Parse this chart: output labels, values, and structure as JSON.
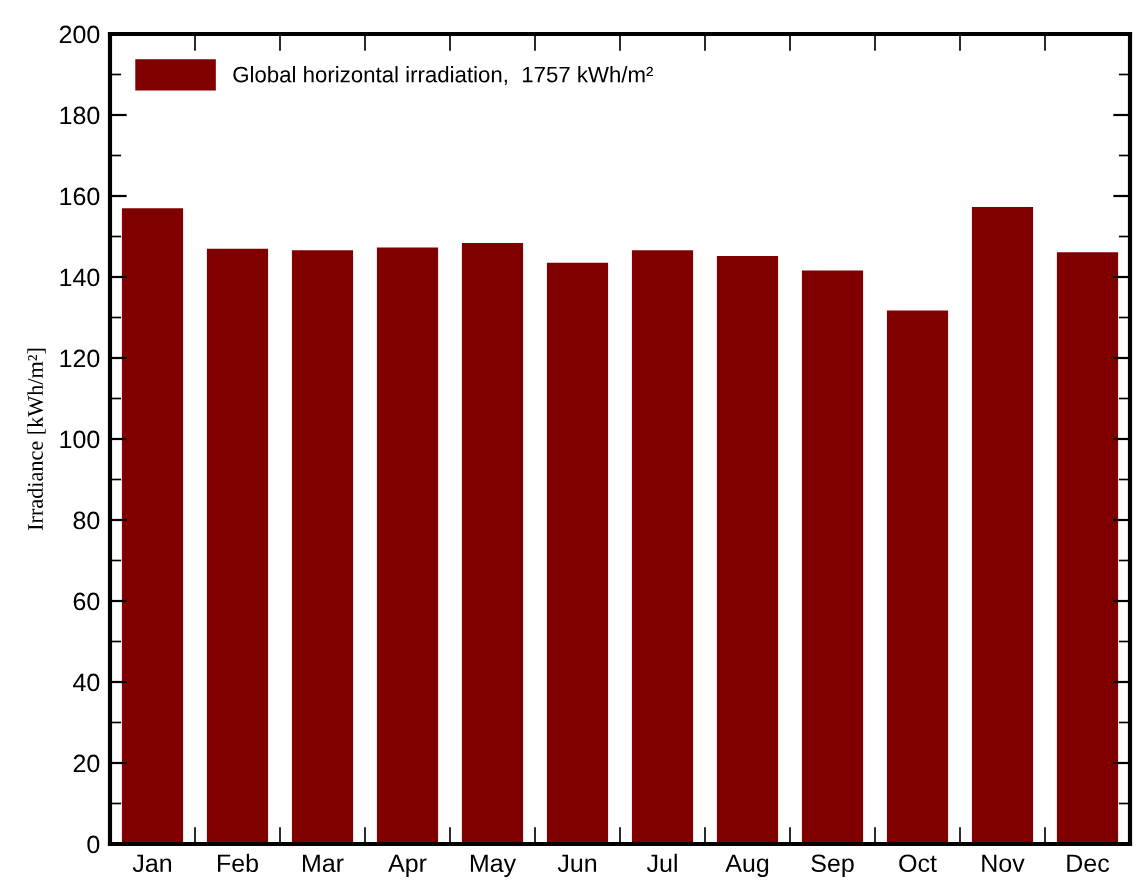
{
  "chart_data": {
    "type": "bar",
    "categories": [
      "Jan",
      "Feb",
      "Mar",
      "Apr",
      "May",
      "Jun",
      "Jul",
      "Aug",
      "Sep",
      "Oct",
      "Nov",
      "Dec"
    ],
    "series": [
      {
        "name": "Global horizontal irradiation,  1757 kWh/m²",
        "color": "#800000",
        "values": [
          157.0,
          147.0,
          146.6,
          147.3,
          148.4,
          143.5,
          146.6,
          145.2,
          141.6,
          131.7,
          157.3,
          146.1
        ]
      }
    ],
    "ylabel": "Irradiance [kWh/m²]",
    "ylim": [
      0,
      200
    ],
    "yticks": [
      0,
      20,
      40,
      60,
      80,
      100,
      120,
      140,
      160,
      180,
      200
    ],
    "grid": false,
    "legend": "top left"
  }
}
